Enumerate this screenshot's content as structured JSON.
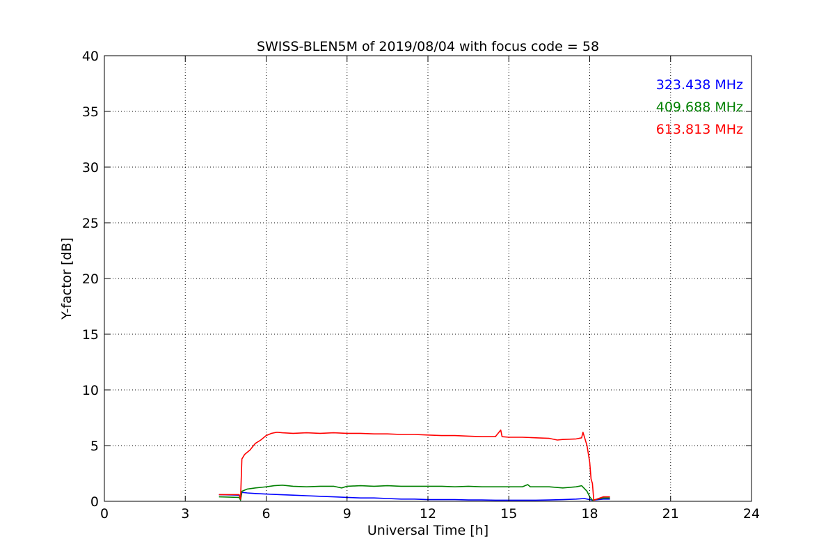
{
  "chart_data": {
    "type": "line",
    "title": "SWISS-BLEN5M of 2019/08/04 with focus code = 58",
    "xlabel": "Universal Time [h]",
    "ylabel": "Y-factor [dB]",
    "xlim": [
      0,
      24
    ],
    "ylim": [
      0,
      40
    ],
    "xticks": [
      0,
      3,
      6,
      9,
      12,
      15,
      18,
      21,
      24
    ],
    "yticks": [
      0,
      5,
      10,
      15,
      20,
      25,
      30,
      35,
      40
    ],
    "grid": true,
    "legend_position": "top-right",
    "series": [
      {
        "name": "323.438 MHz",
        "color": "#0000ff",
        "x": [
          4.25,
          5.0,
          5.05,
          5.1,
          5.3,
          5.6,
          6.0,
          6.5,
          7.0,
          7.5,
          8.0,
          8.5,
          9.0,
          9.5,
          10.0,
          10.5,
          11.0,
          11.5,
          12.0,
          12.5,
          13.0,
          13.5,
          14.0,
          14.5,
          15.0,
          15.5,
          16.0,
          16.5,
          17.0,
          17.5,
          17.8,
          18.0,
          18.1,
          18.5,
          18.75
        ],
        "y": [
          0.6,
          0.55,
          0.15,
          0.8,
          0.75,
          0.7,
          0.65,
          0.6,
          0.55,
          0.5,
          0.45,
          0.4,
          0.35,
          0.3,
          0.3,
          0.25,
          0.2,
          0.2,
          0.15,
          0.15,
          0.15,
          0.12,
          0.12,
          0.1,
          0.1,
          0.1,
          0.1,
          0.12,
          0.15,
          0.2,
          0.25,
          0.15,
          0.1,
          0.2,
          0.2
        ]
      },
      {
        "name": "409.688 MHz",
        "color": "#008000",
        "x": [
          4.25,
          5.0,
          5.05,
          5.1,
          5.3,
          5.6,
          6.0,
          6.3,
          6.6,
          7.0,
          7.5,
          8.0,
          8.5,
          8.8,
          9.0,
          9.5,
          10.0,
          10.5,
          11.0,
          11.5,
          12.0,
          12.5,
          13.0,
          13.5,
          14.0,
          14.5,
          15.0,
          15.5,
          15.7,
          15.8,
          16.0,
          16.5,
          17.0,
          17.5,
          17.7,
          17.9,
          18.0,
          18.1,
          18.5,
          18.75
        ],
        "y": [
          0.4,
          0.35,
          0.1,
          0.9,
          1.1,
          1.2,
          1.3,
          1.4,
          1.45,
          1.35,
          1.3,
          1.35,
          1.35,
          1.2,
          1.35,
          1.4,
          1.35,
          1.4,
          1.35,
          1.35,
          1.35,
          1.35,
          1.3,
          1.35,
          1.3,
          1.3,
          1.3,
          1.3,
          1.5,
          1.3,
          1.3,
          1.3,
          1.2,
          1.3,
          1.4,
          0.9,
          0.4,
          0.1,
          0.3,
          0.3
        ]
      },
      {
        "name": "613.813 MHz",
        "color": "#ff0000",
        "x": [
          4.25,
          5.0,
          5.05,
          5.1,
          5.2,
          5.4,
          5.6,
          5.8,
          6.0,
          6.2,
          6.4,
          6.6,
          7.0,
          7.5,
          8.0,
          8.5,
          9.0,
          9.5,
          10.0,
          10.5,
          11.0,
          11.5,
          12.0,
          12.5,
          13.0,
          13.5,
          14.0,
          14.5,
          14.7,
          14.75,
          15.0,
          15.5,
          16.0,
          16.5,
          16.8,
          17.0,
          17.5,
          17.7,
          17.75,
          17.9,
          18.0,
          18.05,
          18.1,
          18.15,
          18.5,
          18.75
        ],
        "y": [
          0.6,
          0.6,
          0.2,
          3.8,
          4.2,
          4.6,
          5.2,
          5.5,
          5.9,
          6.1,
          6.2,
          6.15,
          6.1,
          6.15,
          6.1,
          6.15,
          6.1,
          6.1,
          6.05,
          6.05,
          6.0,
          6.0,
          5.95,
          5.9,
          5.9,
          5.85,
          5.8,
          5.8,
          6.4,
          5.8,
          5.75,
          5.75,
          5.7,
          5.65,
          5.5,
          5.55,
          5.6,
          5.7,
          6.2,
          5.0,
          3.5,
          2.0,
          1.6,
          0.1,
          0.4,
          0.4
        ]
      }
    ]
  }
}
